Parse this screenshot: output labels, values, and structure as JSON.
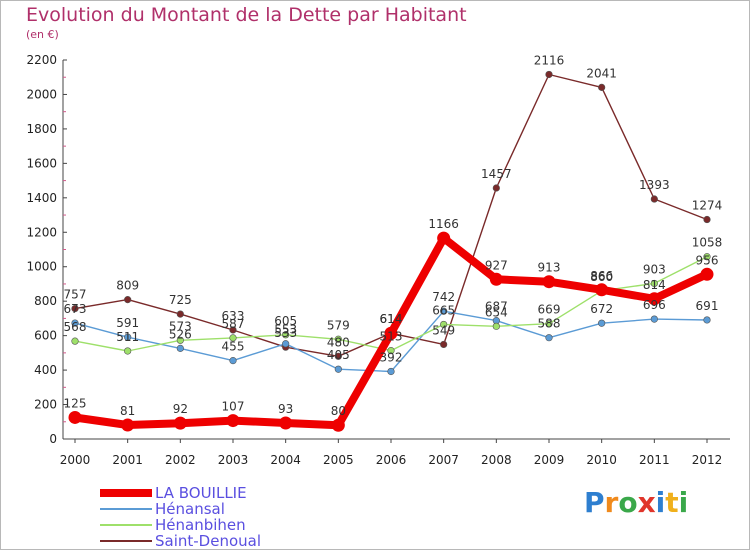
{
  "header": {
    "title": "Evolution du Montant de la Dette par Habitant",
    "subtitle": "(en €)"
  },
  "logo": {
    "letters": [
      "P",
      "r",
      "o",
      "x",
      "i",
      "t",
      "i"
    ],
    "colors": [
      "#2e7fd0",
      "#f08a1c",
      "#3aa84a",
      "#e0352b",
      "#2e7fd0",
      "#f0b01c",
      "#3aa84a"
    ]
  },
  "chart_data": {
    "type": "line",
    "title": "Evolution du Montant de la Dette par Habitant",
    "subtitle": "(en €)",
    "categories": [
      "2000",
      "2001",
      "2002",
      "2003",
      "2004",
      "2005",
      "2006",
      "2007",
      "2008",
      "2009",
      "2010",
      "2011",
      "2012"
    ],
    "ylim": [
      0,
      2200
    ],
    "yticks": [
      0,
      200,
      400,
      600,
      800,
      1000,
      1200,
      1400,
      1600,
      1800,
      2000,
      2200
    ],
    "grid": false,
    "legend_position": "bottom-left",
    "series": [
      {
        "name": "LA BOUILLIE",
        "color": "#ee0000",
        "values": [
          125,
          81,
          92,
          107,
          93,
          80,
          614,
          1166,
          927,
          913,
          866,
          814,
          956
        ]
      },
      {
        "name": "Hénansal",
        "color": "#5b9bd5",
        "values": [
          673,
          591,
          526,
          455,
          553,
          405,
          392,
          742,
          687,
          588,
          672,
          696,
          691
        ]
      },
      {
        "name": "Hénanbihen",
        "color": "#9ee06a",
        "values": [
          568,
          511,
          573,
          587,
          605,
          579,
          513,
          665,
          654,
          669,
          860,
          903,
          1058
        ]
      },
      {
        "name": "Saint-Denoual",
        "color": "#7a2a2a",
        "values": [
          757,
          809,
          725,
          633,
          533,
          480,
          614,
          549,
          1457,
          2116,
          2041,
          1393,
          1274
        ]
      }
    ]
  }
}
